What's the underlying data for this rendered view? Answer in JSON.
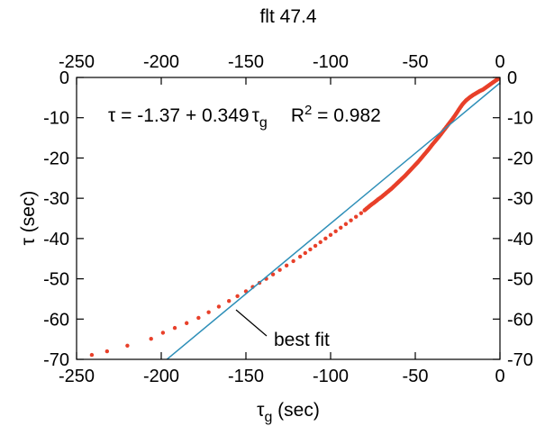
{
  "chart_data": {
    "type": "scatter",
    "title": "flt 47.4",
    "xlabel_base": "τ",
    "xlabel_sub": "g",
    "xlabel_unit": " (sec)",
    "ylabel": "τ (sec)",
    "xlim": [
      -250,
      0
    ],
    "ylim": [
      -70,
      0
    ],
    "x_ticks": [
      -250,
      -200,
      -150,
      -100,
      -50,
      0
    ],
    "y_ticks": [
      0,
      -10,
      -20,
      -30,
      -40,
      -50,
      -60,
      -70
    ],
    "x_tick_labels": [
      "-250",
      "-200",
      "-150",
      "-100",
      "-50",
      "0"
    ],
    "y_tick_labels": [
      "0",
      "-10",
      "-20",
      "-30",
      "-40",
      "-50",
      "-60",
      "-70"
    ],
    "grid": false,
    "colors": {
      "data": "#e8402a",
      "fit": "#2e8fb8"
    },
    "fit": {
      "intercept": -1.37,
      "slope": 0.349
    },
    "equation": {
      "lhs": "τ",
      "eq": " = ",
      "intercept": "-1.37",
      "plus": " + ",
      "slope": "0.349",
      "var": "τ",
      "var_sub": "g",
      "r_label": "R",
      "r_sup": "2",
      "r_eq": " = ",
      "r_value": "0.982"
    },
    "fit_annotation": "best fit",
    "data_points": {
      "x": [
        -241,
        -232,
        -220,
        -206,
        -199,
        -192,
        -185,
        -178,
        -172,
        -166,
        -160,
        -155,
        -150,
        -146,
        -142,
        -138,
        -134,
        -130,
        -126,
        -122,
        -118,
        -115,
        -112,
        -109,
        -106,
        -103,
        -100,
        -97,
        -94,
        -91,
        -88,
        -85,
        -82,
        -80,
        -78,
        -76,
        -74,
        -72,
        -70,
        -68,
        -66,
        -64,
        -62,
        -60,
        -58,
        -56,
        -54,
        -52,
        -50,
        -48,
        -46,
        -44,
        -42,
        -40,
        -38,
        -36,
        -34,
        -32,
        -30,
        -28,
        -26,
        -24,
        -22,
        -20,
        -18,
        -16,
        -14,
        -12,
        -10,
        -8,
        -6,
        -4,
        -2,
        -1
      ],
      "y": [
        -68.9,
        -68.0,
        -66.6,
        -64.9,
        -63.4,
        -62.2,
        -61.0,
        -59.7,
        -58.3,
        -56.9,
        -55.5,
        -54.3,
        -53.1,
        -52.0,
        -51.0,
        -50.0,
        -48.9,
        -47.8,
        -46.7,
        -45.6,
        -44.5,
        -43.6,
        -42.7,
        -41.8,
        -40.9,
        -40.0,
        -39.1,
        -38.2,
        -37.3,
        -36.4,
        -35.5,
        -34.6,
        -33.7,
        -33.0,
        -32.3,
        -31.6,
        -31.0,
        -30.3,
        -29.7,
        -29.0,
        -28.3,
        -27.6,
        -26.8,
        -26.0,
        -25.2,
        -24.4,
        -23.5,
        -22.6,
        -21.7,
        -20.8,
        -19.8,
        -18.8,
        -17.8,
        -16.7,
        -15.7,
        -14.7,
        -13.6,
        -12.5,
        -11.4,
        -10.3,
        -9.1,
        -7.8,
        -6.6,
        -5.7,
        -5.0,
        -4.4,
        -3.9,
        -3.4,
        -3.0,
        -2.4,
        -1.8,
        -1.2,
        -0.6,
        -0.3
      ]
    }
  }
}
